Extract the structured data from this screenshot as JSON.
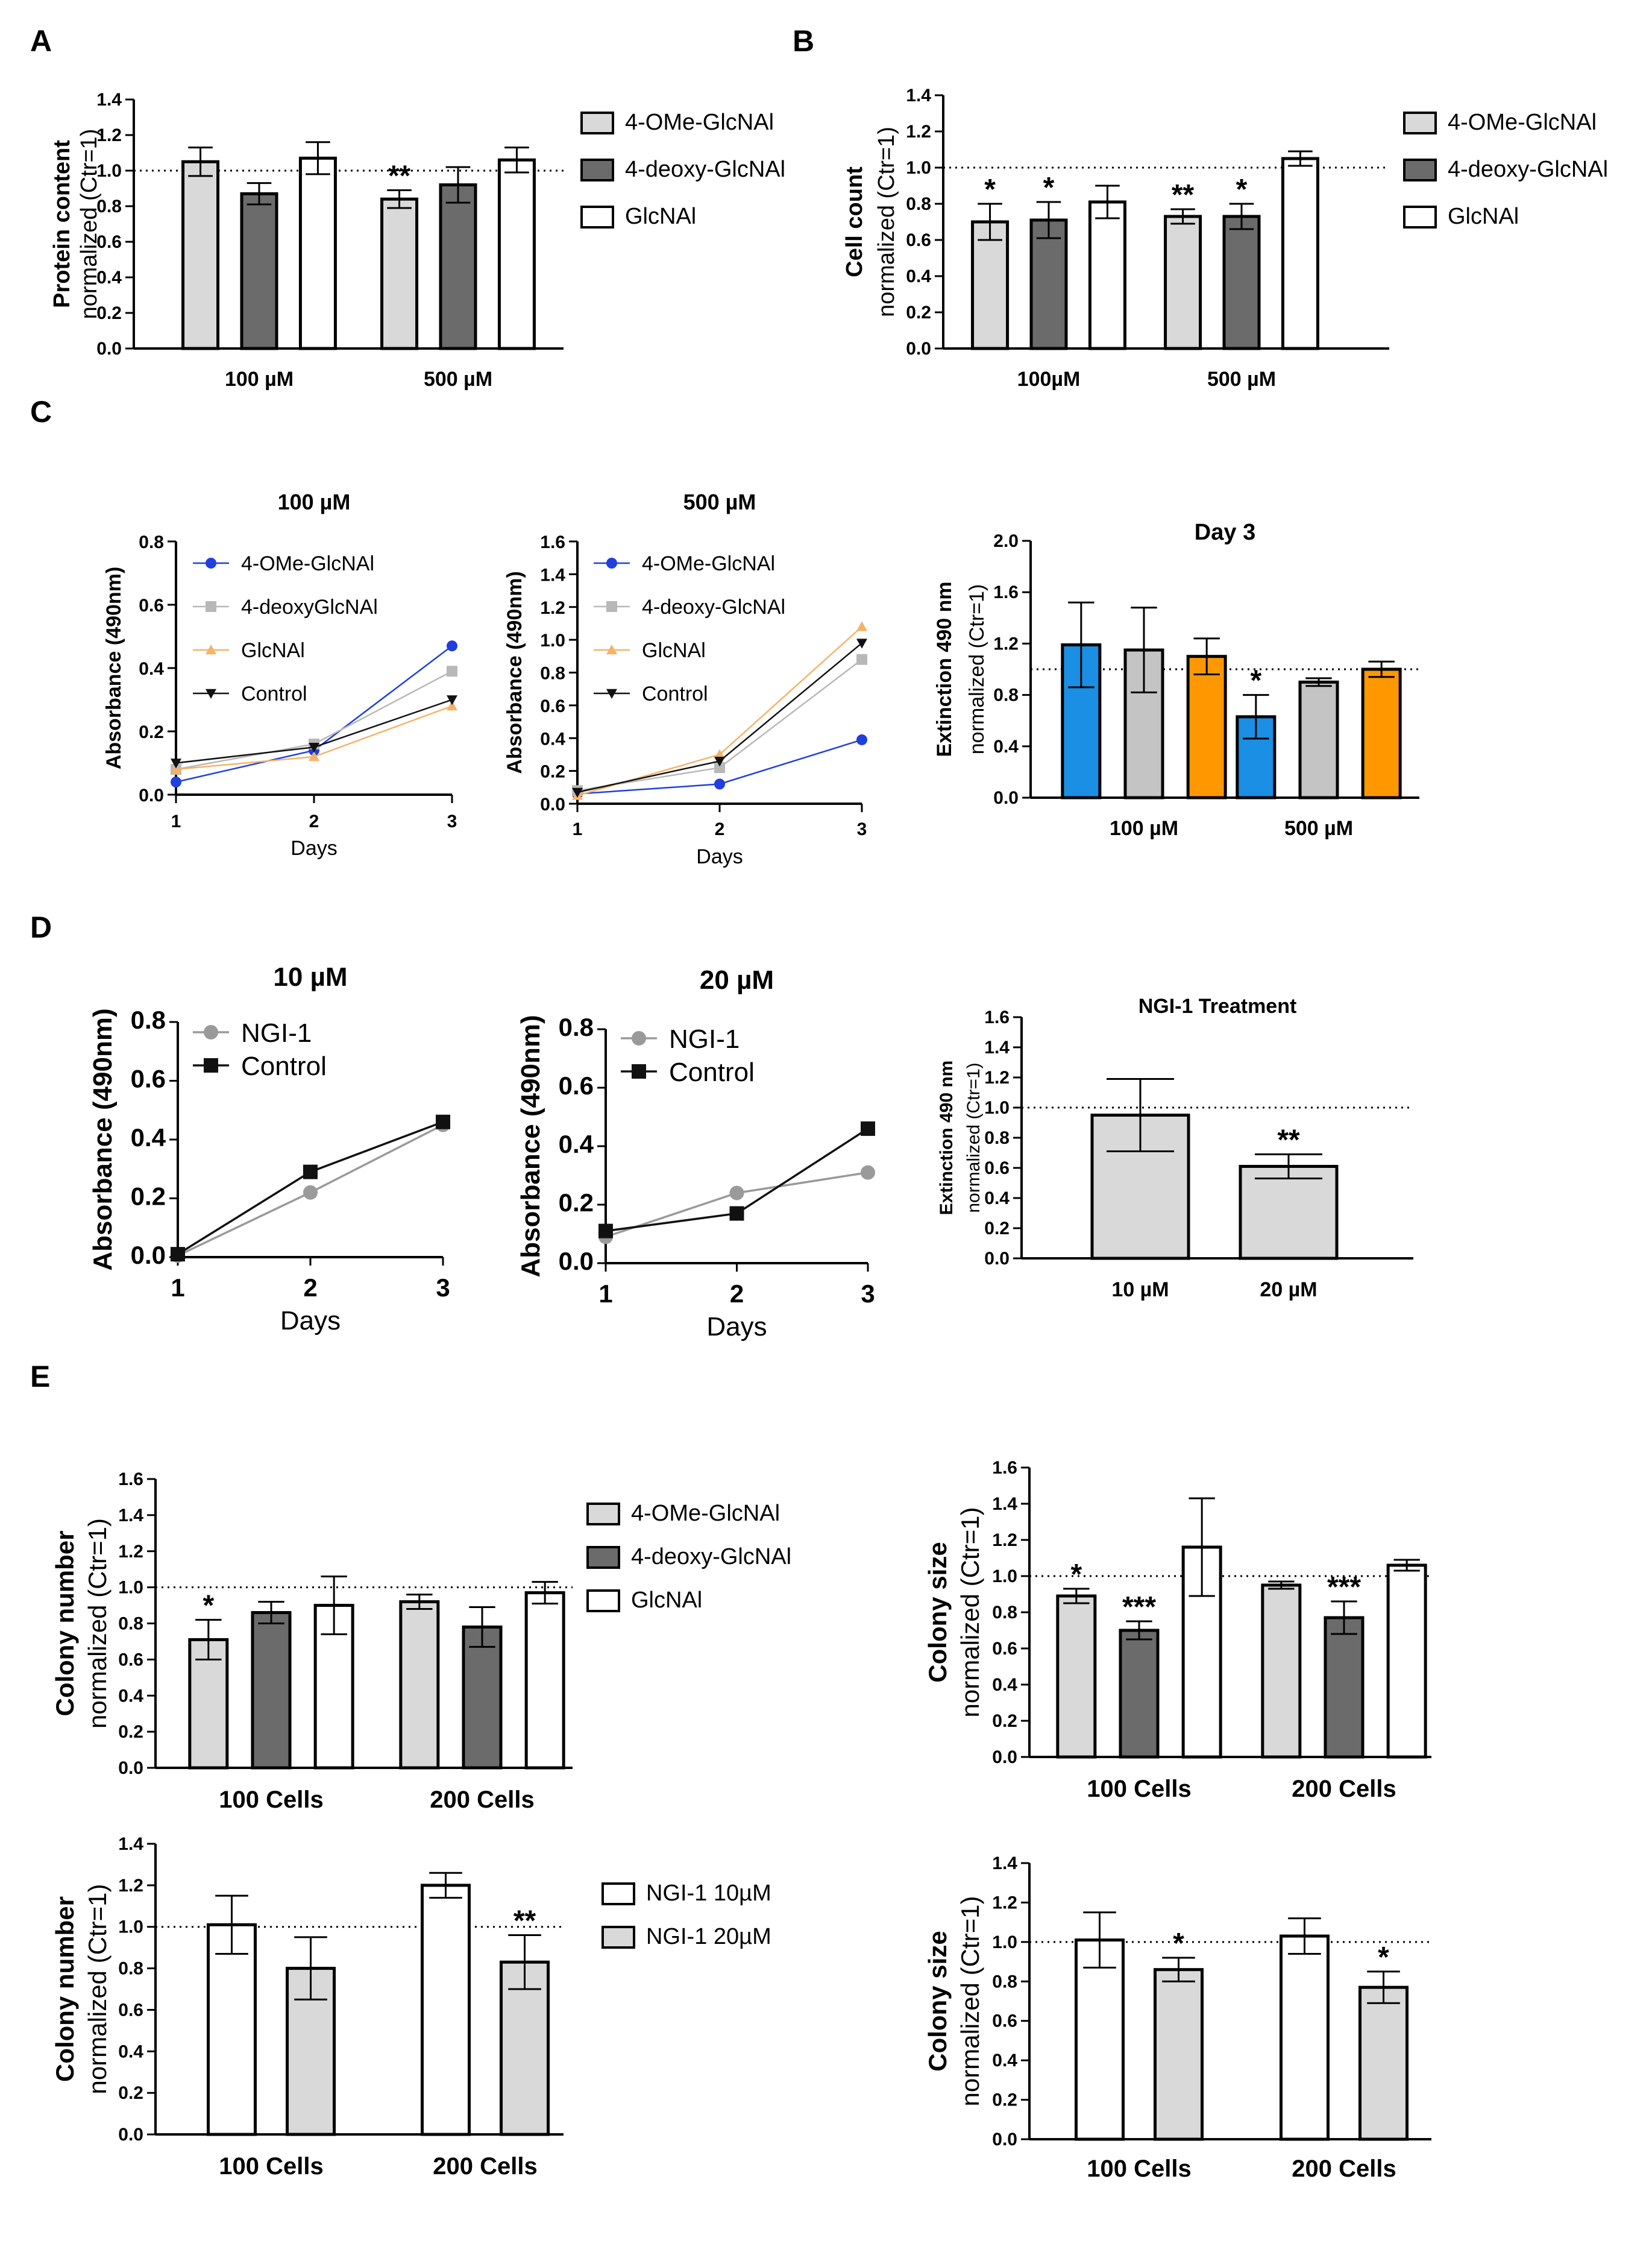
{
  "figure": {
    "panel_labels": [
      "A",
      "B",
      "C",
      "D",
      "E"
    ]
  },
  "colors": {
    "light_gray": "#d9d9d9",
    "dark_gray": "#6b6b6b",
    "white": "#ffffff",
    "blue": "#1a8fe3",
    "orange": "#ff9800",
    "line_blue": "#1f3fe0",
    "line_gray": "#b8b8b8",
    "line_orange": "#f5b267",
    "line_black": "#111111",
    "ngi_gray": "#9a9a9a"
  },
  "chart_data": [
    {
      "id": "A",
      "type": "bar",
      "title": "",
      "ylabel_bold": "Protein content",
      "ylabel_normal": "normalized (Ctr=1)",
      "ylim": [
        0,
        1.4
      ],
      "yticks": [
        "0.0",
        "0.2",
        "0.4",
        "0.6",
        "0.8",
        "1.0",
        "1.2",
        "1.4"
      ],
      "categories": [
        "100 µM",
        "500 µM"
      ],
      "series": [
        {
          "name": "4-OMe-GlcNAl",
          "fill": "#d9d9d9",
          "values": [
            1.05,
            0.84
          ],
          "errors": [
            0.08,
            0.05
          ]
        },
        {
          "name": "4-deoxy-GlcNAl",
          "fill": "#6b6b6b",
          "values": [
            0.87,
            0.92
          ],
          "errors": [
            0.06,
            0.1
          ]
        },
        {
          "name": "GlcNAl",
          "fill": "#ffffff",
          "values": [
            1.07,
            1.06
          ],
          "errors": [
            0.09,
            0.07
          ]
        }
      ],
      "significance": [
        {
          "category": 1,
          "series": 0,
          "text": "**"
        }
      ],
      "reference_line": 1.0,
      "legend": "right"
    },
    {
      "id": "B",
      "type": "bar",
      "title": "",
      "ylabel_bold": "Cell count",
      "ylabel_normal": "normalized (Ctr=1)",
      "ylim": [
        0,
        1.4
      ],
      "yticks": [
        "0.0",
        "0.2",
        "0.4",
        "0.6",
        "0.8",
        "1.0",
        "1.2",
        "1.4"
      ],
      "categories": [
        "100µM",
        "500 µM"
      ],
      "series": [
        {
          "name": "4-OMe-GlcNAl",
          "fill": "#d9d9d9",
          "values": [
            0.7,
            0.73
          ],
          "errors": [
            0.1,
            0.04
          ]
        },
        {
          "name": "4-deoxy-GlcNAl",
          "fill": "#6b6b6b",
          "values": [
            0.71,
            0.73
          ],
          "errors": [
            0.1,
            0.07
          ]
        },
        {
          "name": "GlcNAl",
          "fill": "#ffffff",
          "values": [
            0.81,
            1.05
          ],
          "errors": [
            0.09,
            0.04
          ]
        }
      ],
      "significance": [
        {
          "category": 0,
          "series": 0,
          "text": "*"
        },
        {
          "category": 0,
          "series": 1,
          "text": "*"
        },
        {
          "category": 1,
          "series": 0,
          "text": "**"
        },
        {
          "category": 1,
          "series": 1,
          "text": "*"
        }
      ],
      "reference_line": 1.0,
      "legend": "right"
    },
    {
      "id": "C1",
      "type": "line",
      "title": "100 µM",
      "xlabel": "Days",
      "ylabel": "Absorbance (490nm)",
      "x": [
        1,
        2,
        3
      ],
      "xticks": [
        "1",
        "2",
        "3"
      ],
      "ylim": [
        0,
        0.8
      ],
      "yticks": [
        "0.0",
        "0.2",
        "0.4",
        "0.6",
        "0.8"
      ],
      "series": [
        {
          "name": "4-OMe-GlcNAl",
          "marker": "circle",
          "color": "#1f3fe0",
          "values": [
            0.04,
            0.14,
            0.47
          ]
        },
        {
          "name": "4-deoxyGlcNAl",
          "marker": "square",
          "color": "#b8b8b8",
          "values": [
            0.08,
            0.16,
            0.39
          ]
        },
        {
          "name": "GlcNAl",
          "marker": "triangle-up",
          "color": "#f5b267",
          "values": [
            0.08,
            0.12,
            0.28
          ]
        },
        {
          "name": "Control",
          "marker": "triangle-down",
          "color": "#111111",
          "values": [
            0.1,
            0.15,
            0.3
          ]
        }
      ],
      "legend": "top-left"
    },
    {
      "id": "C2",
      "type": "line",
      "title": "500 µM",
      "xlabel": "Days",
      "ylabel": "Absorbance (490nm)",
      "x": [
        1,
        2,
        3
      ],
      "xticks": [
        "1",
        "2",
        "3"
      ],
      "ylim": [
        0,
        1.6
      ],
      "yticks": [
        "0.0",
        "0.2",
        "0.4",
        "0.6",
        "0.8",
        "1.0",
        "1.2",
        "1.4",
        "1.6"
      ],
      "series": [
        {
          "name": "4-OMe-GlcNAl",
          "marker": "circle",
          "color": "#1f3fe0",
          "values": [
            0.06,
            0.12,
            0.39
          ]
        },
        {
          "name": "4-deoxy-GlcNAl",
          "marker": "square",
          "color": "#b8b8b8",
          "values": [
            0.08,
            0.22,
            0.88
          ]
        },
        {
          "name": "GlcNAl",
          "marker": "triangle-up",
          "color": "#f5b267",
          "values": [
            0.05,
            0.3,
            1.08
          ]
        },
        {
          "name": "Control",
          "marker": "triangle-down",
          "color": "#111111",
          "values": [
            0.07,
            0.26,
            0.98
          ]
        }
      ],
      "legend": "top-left"
    },
    {
      "id": "C3",
      "type": "bar",
      "title": "Day 3",
      "ylabel_bold": "Extinction 490 nm",
      "ylabel_normal": "normalized (Ctr=1)",
      "ylim": [
        0,
        2.0
      ],
      "yticks": [
        "0.0",
        "0.4",
        "0.8",
        "1.2",
        "1.6",
        "2.0"
      ],
      "categories": [
        "100 µM",
        "500 µM"
      ],
      "series": [
        {
          "name": "4-OMe-GlcNAl",
          "fill": "#1a8fe3",
          "values": [
            1.19,
            0.63
          ],
          "errors": [
            0.33,
            0.17
          ]
        },
        {
          "name": "4-deoxy-GlcNAl",
          "fill": "#c4c4c4",
          "values": [
            1.15,
            0.9
          ],
          "errors": [
            0.33,
            0.03
          ]
        },
        {
          "name": "GlcNAl",
          "fill": "#ff9800",
          "values": [
            1.1,
            1.0
          ],
          "errors": [
            0.14,
            0.06
          ]
        }
      ],
      "significance": [
        {
          "category": 1,
          "series": 0,
          "text": "*"
        }
      ],
      "reference_line": 1.0,
      "legend": "none"
    },
    {
      "id": "D1",
      "type": "line",
      "title": "10 µM",
      "xlabel": "Days",
      "ylabel": "Absorbance (490nm)",
      "x": [
        1,
        2,
        3
      ],
      "xticks": [
        "1",
        "2",
        "3"
      ],
      "ylim": [
        0,
        0.8
      ],
      "yticks": [
        "0.0",
        "0.2",
        "0.4",
        "0.6",
        "0.8"
      ],
      "series": [
        {
          "name": "NGI-1",
          "marker": "circle",
          "color": "#9a9a9a",
          "values": [
            0.005,
            0.22,
            0.45
          ]
        },
        {
          "name": "Control",
          "marker": "square",
          "color": "#111111",
          "values": [
            0.01,
            0.29,
            0.46
          ]
        }
      ],
      "legend": "top-left"
    },
    {
      "id": "D2",
      "type": "line",
      "title": "20 µM",
      "xlabel": "Days",
      "ylabel": "Absorbance (490nm)",
      "x": [
        1,
        2,
        3
      ],
      "xticks": [
        "1",
        "2",
        "3"
      ],
      "ylim": [
        0,
        0.8
      ],
      "yticks": [
        "0.0",
        "0.2",
        "0.4",
        "0.6",
        "0.8"
      ],
      "series": [
        {
          "name": "NGI-1",
          "marker": "circle",
          "color": "#9a9a9a",
          "values": [
            0.09,
            0.24,
            0.31
          ]
        },
        {
          "name": "Control",
          "marker": "square",
          "color": "#111111",
          "values": [
            0.11,
            0.17,
            0.46
          ]
        }
      ],
      "legend": "top-left"
    },
    {
      "id": "D3",
      "type": "bar",
      "title": "NGI-1 Treatment",
      "ylabel_bold": "Extinction 490 nm",
      "ylabel_normal": "normalized (Ctr=1)",
      "ylim": [
        0,
        1.6
      ],
      "yticks": [
        "0.0",
        "0.2",
        "0.4",
        "0.6",
        "0.8",
        "1.0",
        "1.2",
        "1.4",
        "1.6"
      ],
      "categories": [
        "10 µM",
        "20 µM"
      ],
      "series": [
        {
          "name": "NGI-1",
          "fill": "#d9d9d9",
          "values": [
            0.95,
            0.61
          ],
          "errors": [
            0.24,
            0.08
          ]
        }
      ],
      "significance": [
        {
          "category": 1,
          "series": 0,
          "text": "**"
        }
      ],
      "reference_line": 1.0,
      "legend": "none"
    },
    {
      "id": "E1",
      "type": "bar",
      "title": "",
      "ylabel_bold": "Colony number",
      "ylabel_normal": "normalized (Ctr=1)",
      "ylim": [
        0,
        1.6
      ],
      "yticks": [
        "0.0",
        "0.2",
        "0.4",
        "0.6",
        "0.8",
        "1.0",
        "1.2",
        "1.4",
        "1.6"
      ],
      "categories": [
        "100 Cells",
        "200 Cells"
      ],
      "series": [
        {
          "name": "4-OMe-GlcNAl",
          "fill": "#d9d9d9",
          "values": [
            0.71,
            0.92
          ],
          "errors": [
            0.11,
            0.04
          ]
        },
        {
          "name": "4-deoxy-GlcNAl",
          "fill": "#6b6b6b",
          "values": [
            0.86,
            0.78
          ],
          "errors": [
            0.06,
            0.11
          ]
        },
        {
          "name": "GlcNAl",
          "fill": "#ffffff",
          "values": [
            0.9,
            0.97
          ],
          "errors": [
            0.16,
            0.06
          ]
        }
      ],
      "significance": [
        {
          "category": 0,
          "series": 0,
          "text": "*"
        }
      ],
      "reference_line": 1.0,
      "legend": "right"
    },
    {
      "id": "E2",
      "type": "bar",
      "title": "",
      "ylabel_bold": "Colony size",
      "ylabel_normal": "normalized (Ctr=1)",
      "ylim": [
        0,
        1.6
      ],
      "yticks": [
        "0.0",
        "0.2",
        "0.4",
        "0.6",
        "0.8",
        "1.0",
        "1.2",
        "1.4",
        "1.6"
      ],
      "categories": [
        "100 Cells",
        "200 Cells"
      ],
      "series": [
        {
          "name": "4-OMe-GlcNAl",
          "fill": "#d9d9d9",
          "values": [
            0.89,
            0.95
          ],
          "errors": [
            0.04,
            0.02
          ]
        },
        {
          "name": "4-deoxy-GlcNAl",
          "fill": "#6b6b6b",
          "values": [
            0.7,
            0.77
          ],
          "errors": [
            0.05,
            0.09
          ]
        },
        {
          "name": "GlcNAl",
          "fill": "#ffffff",
          "values": [
            1.16,
            1.06
          ],
          "errors": [
            0.27,
            0.03
          ]
        }
      ],
      "significance": [
        {
          "category": 0,
          "series": 0,
          "text": "*"
        },
        {
          "category": 0,
          "series": 1,
          "text": "***"
        },
        {
          "category": 1,
          "series": 1,
          "text": "***"
        }
      ],
      "reference_line": 1.0,
      "legend": "none"
    },
    {
      "id": "E3",
      "type": "bar",
      "title": "",
      "ylabel_bold": "Colony number",
      "ylabel_normal": "normalized (Ctr=1)",
      "ylim": [
        0,
        1.4
      ],
      "yticks": [
        "0.0",
        "0.2",
        "0.4",
        "0.6",
        "0.8",
        "1.0",
        "1.2",
        "1.4"
      ],
      "categories": [
        "100 Cells",
        "200 Cells"
      ],
      "series": [
        {
          "name": "NGI-1 10µM",
          "fill": "#ffffff",
          "values": [
            1.01,
            1.2
          ],
          "errors": [
            0.14,
            0.06
          ]
        },
        {
          "name": "NGI-1 20µM",
          "fill": "#d9d9d9",
          "values": [
            0.8,
            0.83
          ],
          "errors": [
            0.15,
            0.13
          ]
        }
      ],
      "significance": [
        {
          "category": 1,
          "series": 1,
          "text": "**"
        }
      ],
      "reference_line": 1.0,
      "legend": "right"
    },
    {
      "id": "E4",
      "type": "bar",
      "title": "",
      "ylabel_bold": "Colony size",
      "ylabel_normal": "normalized (Ctr=1)",
      "ylim": [
        0,
        1.4
      ],
      "yticks": [
        "0.0",
        "0.2",
        "0.4",
        "0.6",
        "0.8",
        "1.0",
        "1.2",
        "1.4"
      ],
      "categories": [
        "100 Cells",
        "200 Cells"
      ],
      "series": [
        {
          "name": "NGI-1 10µM",
          "fill": "#ffffff",
          "values": [
            1.01,
            1.03
          ],
          "errors": [
            0.14,
            0.09
          ]
        },
        {
          "name": "NGI-1 20µM",
          "fill": "#d9d9d9",
          "values": [
            0.86,
            0.77
          ],
          "errors": [
            0.06,
            0.08
          ]
        }
      ],
      "significance": [
        {
          "category": 0,
          "series": 1,
          "text": "*"
        },
        {
          "category": 1,
          "series": 1,
          "text": "*"
        }
      ],
      "reference_line": 1.0,
      "legend": "none"
    }
  ]
}
